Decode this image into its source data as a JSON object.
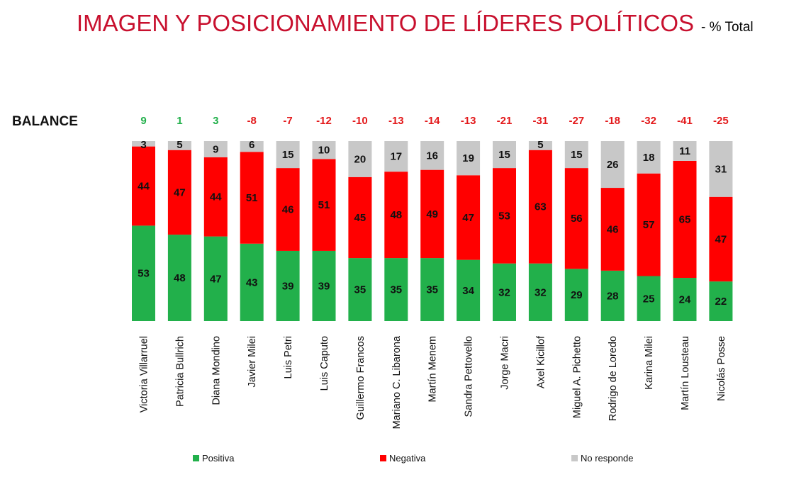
{
  "title": {
    "main": "IMAGEN Y POSICIONAMIENTO DE LÍDERES POLÍTICOS",
    "sub": "- % Total"
  },
  "chart_data": {
    "type": "bar",
    "stacked": true,
    "orientation": "vertical",
    "balance_label": "BALANCE",
    "categories": [
      "Victoria Villarruel",
      "Patricia Bullrich",
      "Diana Mondino",
      "Javier Milei",
      "Luis Petri",
      "Luis Caputo",
      "Guillermo Francos",
      "Mariano C. Libarona",
      "Martín Menem",
      "Sandra Pettovello",
      "Jorge Macri",
      "Axel Kicillof",
      "Miguel A. Pichetto",
      "Rodrigo de Loredo",
      "Karina Milei",
      "Martín Lousteau",
      "Nicolás Posse"
    ],
    "balance": [
      "9",
      "1",
      "3",
      "-8",
      "-7",
      "-12",
      "-10",
      "-13",
      "-14",
      "-13",
      "-21",
      "-31",
      "-27",
      "-18",
      "-32",
      "-41",
      "-25"
    ],
    "series": [
      {
        "name": "Positiva",
        "color": "#22b04b",
        "values": [
          53,
          48,
          47,
          43,
          39,
          39,
          35,
          35,
          35,
          34,
          32,
          32,
          29,
          28,
          25,
          24,
          22
        ]
      },
      {
        "name": "Negativa",
        "color": "#ff0000",
        "values": [
          44,
          47,
          44,
          51,
          46,
          51,
          45,
          48,
          49,
          47,
          53,
          63,
          56,
          46,
          57,
          65,
          47
        ]
      },
      {
        "name": "No responde",
        "color": "#c8c8c8",
        "values": [
          3,
          5,
          9,
          6,
          15,
          10,
          20,
          17,
          16,
          19,
          15,
          5,
          15,
          26,
          18,
          11,
          31
        ]
      }
    ],
    "colors": {
      "positive_balance": "#22b04b",
      "negative_balance": "#e31a1c"
    },
    "ylim": [
      0,
      100
    ],
    "legend": "bottom"
  }
}
